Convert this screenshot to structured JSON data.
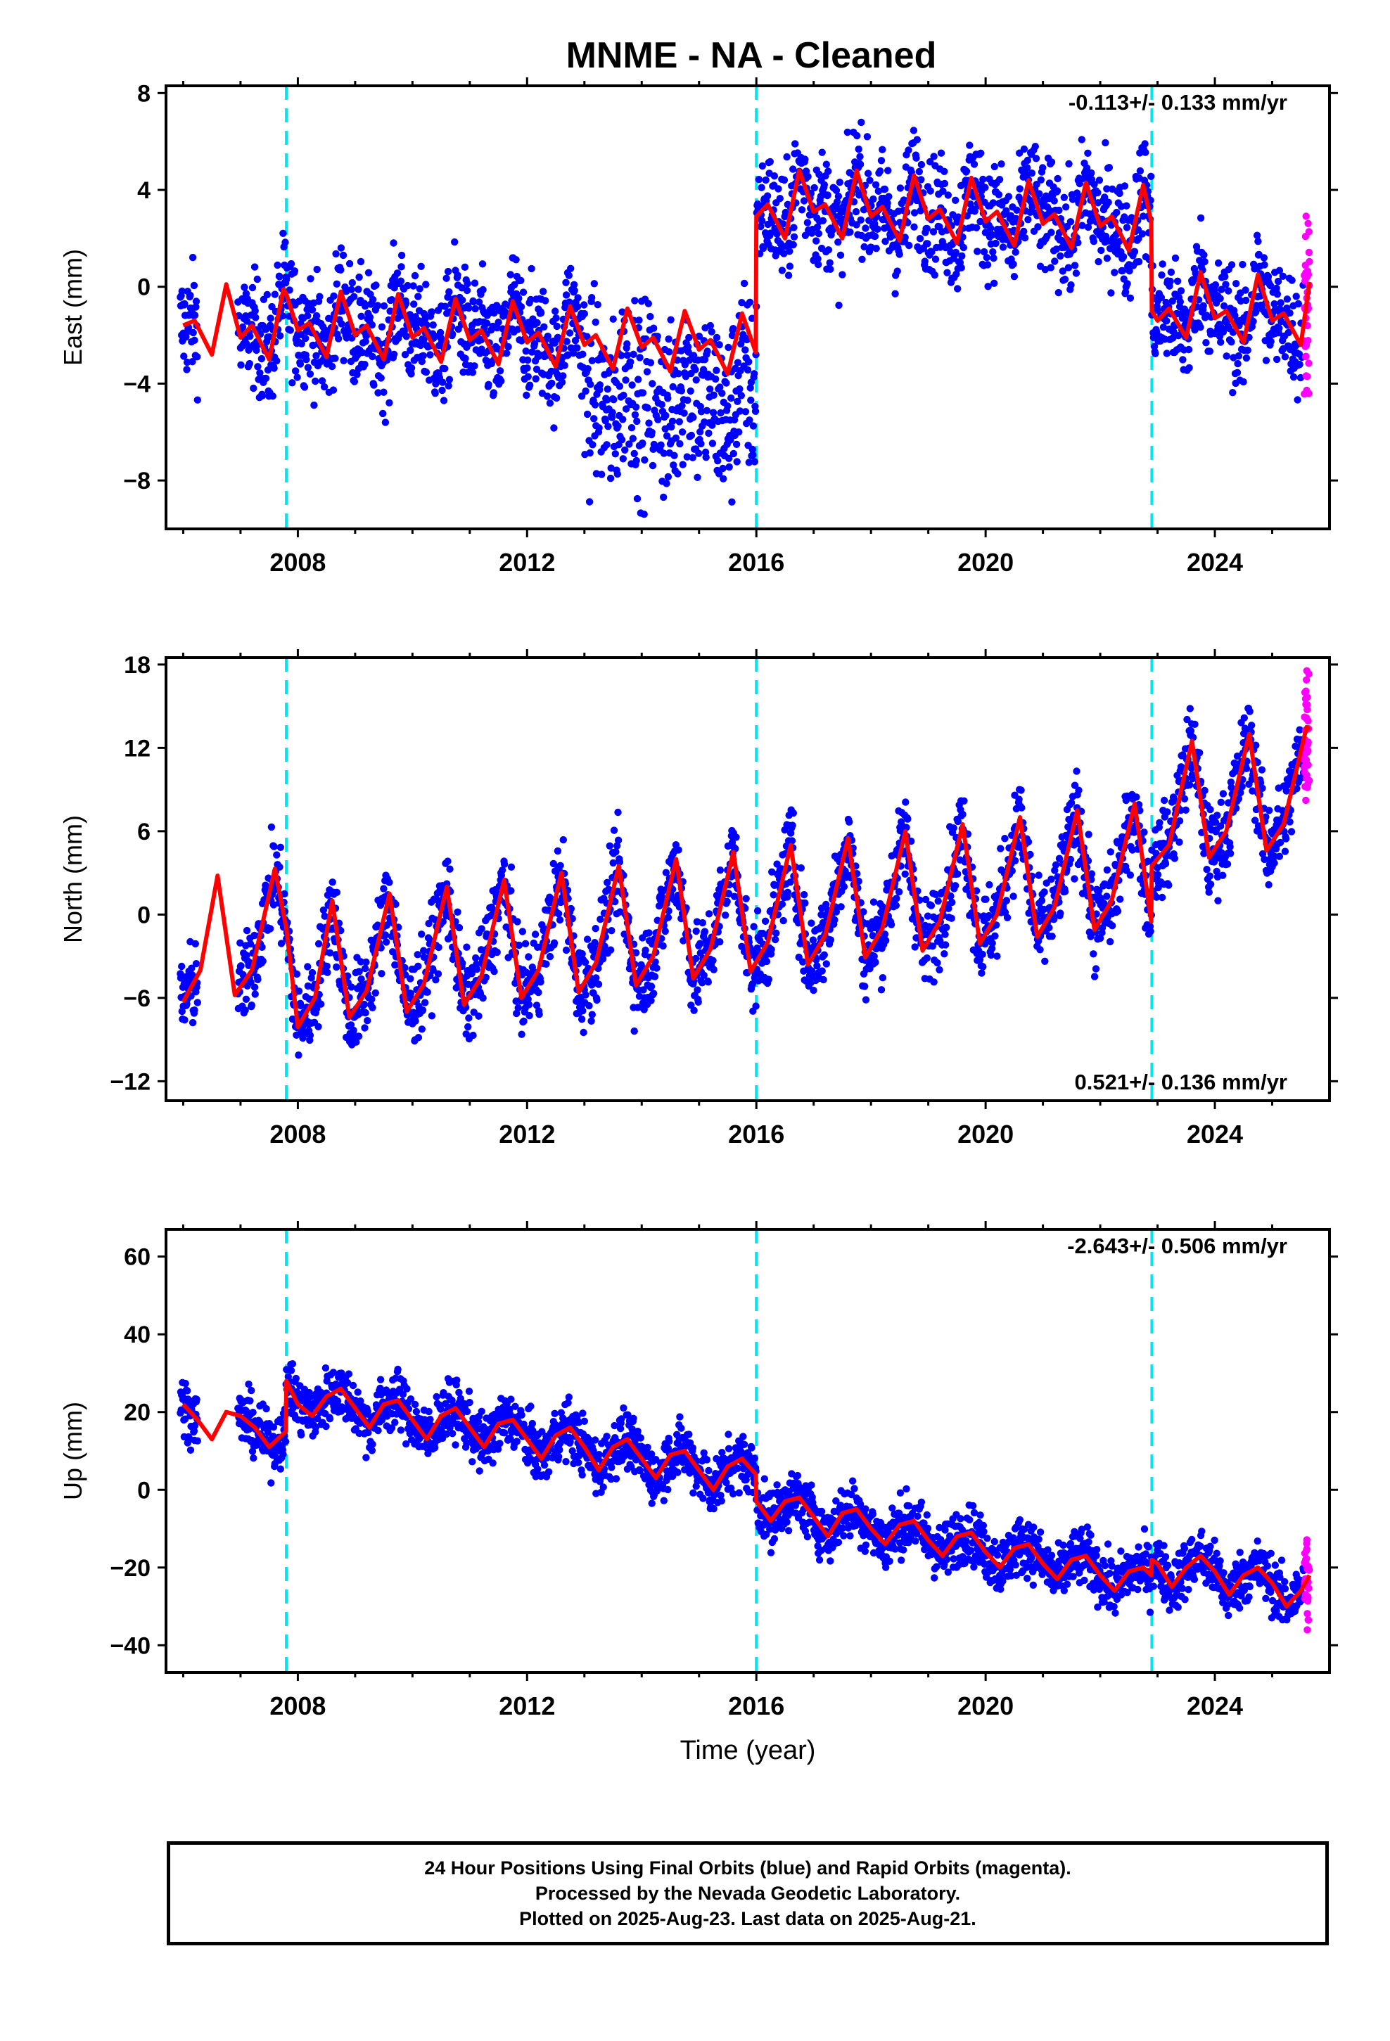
{
  "title": "MNME  - NA - Cleaned",
  "colors": {
    "final": "#0000ff",
    "rapid": "#ff00ff",
    "model": "#ff0000",
    "offset": "#00e5ee",
    "frame": "#000000"
  },
  "chart_data": [
    {
      "type": "scatter",
      "component": "East",
      "ylabel": "East (mm)",
      "xlabel": "",
      "xlim": [
        2005.7,
        2026.0
      ],
      "ylim": [
        -10.0,
        8.3
      ],
      "yticks": [
        -8,
        -4,
        0,
        4,
        8
      ],
      "yticklabels": [
        "−8",
        "−4",
        "0",
        "4",
        "8"
      ],
      "xticks": [
        2008,
        2012,
        2016,
        2020,
        2024
      ],
      "xticklabels": [
        "2008",
        "2012",
        "2016",
        "2020",
        "2024"
      ],
      "rate_label": "-0.113+/- 0.133 mm/yr",
      "rate_position": "top-right",
      "offset_epochs": [
        2007.8,
        2016.0,
        2022.9
      ],
      "grid": false,
      "series": [
        {
          "role": "final orbits",
          "color": "#0000ff",
          "marker": "dot"
        },
        {
          "role": "rapid orbits",
          "color": "#ff00ff",
          "marker": "dot"
        },
        {
          "role": "model fit",
          "color": "#ff0000",
          "marker": "line"
        }
      ],
      "model_points": [
        [
          2006.0,
          -1.6
        ],
        [
          2006.2,
          -1.4
        ],
        [
          2006.5,
          -2.8
        ],
        [
          2006.75,
          0.1
        ],
        [
          2007.0,
          -2.1
        ],
        [
          2007.2,
          -1.6
        ],
        [
          2007.5,
          -3.0
        ],
        [
          2007.75,
          -0.1
        ],
        [
          2007.8,
          -0.3
        ],
        [
          2008.0,
          -1.8
        ],
        [
          2008.2,
          -1.5
        ],
        [
          2008.5,
          -2.9
        ],
        [
          2008.75,
          -0.2
        ],
        [
          2009.0,
          -2.0
        ],
        [
          2009.2,
          -1.6
        ],
        [
          2009.5,
          -3.0
        ],
        [
          2009.75,
          -0.3
        ],
        [
          2010.0,
          -2.1
        ],
        [
          2010.2,
          -1.7
        ],
        [
          2010.5,
          -3.1
        ],
        [
          2010.75,
          -0.5
        ],
        [
          2011.0,
          -2.2
        ],
        [
          2011.2,
          -1.8
        ],
        [
          2011.5,
          -3.2
        ],
        [
          2011.75,
          -0.6
        ],
        [
          2012.0,
          -2.3
        ],
        [
          2012.2,
          -1.9
        ],
        [
          2012.5,
          -3.3
        ],
        [
          2012.75,
          -0.8
        ],
        [
          2013.0,
          -2.4
        ],
        [
          2013.2,
          -2.0
        ],
        [
          2013.5,
          -3.4
        ],
        [
          2013.75,
          -0.9
        ],
        [
          2014.0,
          -2.5
        ],
        [
          2014.2,
          -2.1
        ],
        [
          2014.5,
          -3.5
        ],
        [
          2014.75,
          -1.0
        ],
        [
          2015.0,
          -2.6
        ],
        [
          2015.2,
          -2.2
        ],
        [
          2015.5,
          -3.6
        ],
        [
          2015.75,
          -1.1
        ],
        [
          2015.99,
          -2.7
        ],
        [
          2016.0,
          2.9
        ],
        [
          2016.2,
          3.4
        ],
        [
          2016.5,
          2.0
        ],
        [
          2016.75,
          4.8
        ],
        [
          2017.0,
          3.1
        ],
        [
          2017.2,
          3.4
        ],
        [
          2017.5,
          2.0
        ],
        [
          2017.75,
          4.8
        ],
        [
          2018.0,
          2.9
        ],
        [
          2018.2,
          3.3
        ],
        [
          2018.5,
          1.9
        ],
        [
          2018.75,
          4.6
        ],
        [
          2019.0,
          2.8
        ],
        [
          2019.2,
          3.2
        ],
        [
          2019.5,
          1.8
        ],
        [
          2019.75,
          4.5
        ],
        [
          2020.0,
          2.7
        ],
        [
          2020.2,
          3.1
        ],
        [
          2020.5,
          1.7
        ],
        [
          2020.75,
          4.4
        ],
        [
          2021.0,
          2.6
        ],
        [
          2021.2,
          3.0
        ],
        [
          2021.5,
          1.6
        ],
        [
          2021.75,
          4.3
        ],
        [
          2022.0,
          2.5
        ],
        [
          2022.2,
          2.9
        ],
        [
          2022.5,
          1.5
        ],
        [
          2022.75,
          4.2
        ],
        [
          2022.89,
          2.7
        ],
        [
          2022.9,
          -1.0
        ],
        [
          2023.0,
          -1.4
        ],
        [
          2023.2,
          -0.9
        ],
        [
          2023.5,
          -2.1
        ],
        [
          2023.75,
          0.6
        ],
        [
          2024.0,
          -1.3
        ],
        [
          2024.2,
          -1.0
        ],
        [
          2024.5,
          -2.3
        ],
        [
          2024.75,
          0.5
        ],
        [
          2025.0,
          -1.4
        ],
        [
          2025.2,
          -1.1
        ],
        [
          2025.5,
          -2.4
        ],
        [
          2025.65,
          0.2
        ]
      ]
    },
    {
      "type": "scatter",
      "component": "North",
      "ylabel": "North (mm)",
      "xlabel": "",
      "xlim": [
        2005.7,
        2026.0
      ],
      "ylim": [
        -13.4,
        18.5
      ],
      "yticks": [
        -12,
        -6,
        0,
        6,
        12,
        18
      ],
      "yticklabels": [
        "−12",
        "−6",
        "0",
        "6",
        "12",
        "18"
      ],
      "xticks": [
        2008,
        2012,
        2016,
        2020,
        2024
      ],
      "xticklabels": [
        "2008",
        "2012",
        "2016",
        "2020",
        "2024"
      ],
      "rate_label": "0.521+/- 0.136 mm/yr",
      "rate_position": "bottom-right",
      "offset_epochs": [
        2007.8,
        2016.0,
        2022.9
      ],
      "grid": false,
      "series": [
        {
          "role": "final orbits",
          "color": "#0000ff",
          "marker": "dot"
        },
        {
          "role": "rapid orbits",
          "color": "#ff00ff",
          "marker": "dot"
        },
        {
          "role": "model fit",
          "color": "#ff0000",
          "marker": "line"
        }
      ],
      "model_points": [
        [
          2006.0,
          -6.3
        ],
        [
          2006.3,
          -4.0
        ],
        [
          2006.6,
          2.8
        ],
        [
          2006.9,
          -5.8
        ],
        [
          2007.2,
          -4.0
        ],
        [
          2007.6,
          3.3
        ],
        [
          2007.8,
          -1.0
        ],
        [
          2008.0,
          -8.1
        ],
        [
          2008.3,
          -6.0
        ],
        [
          2008.6,
          1.0
        ],
        [
          2008.9,
          -7.4
        ],
        [
          2009.2,
          -5.5
        ],
        [
          2009.6,
          1.5
        ],
        [
          2009.9,
          -7.0
        ],
        [
          2010.2,
          -5.0
        ],
        [
          2010.6,
          2.0
        ],
        [
          2010.9,
          -6.5
        ],
        [
          2011.2,
          -4.5
        ],
        [
          2011.6,
          2.5
        ],
        [
          2011.9,
          -6.0
        ],
        [
          2012.2,
          -4.0
        ],
        [
          2012.6,
          3.0
        ],
        [
          2012.9,
          -5.6
        ],
        [
          2013.2,
          -3.5
        ],
        [
          2013.6,
          3.5
        ],
        [
          2013.9,
          -5.1
        ],
        [
          2014.2,
          -3.0
        ],
        [
          2014.6,
          4.0
        ],
        [
          2014.9,
          -4.6
        ],
        [
          2015.2,
          -2.5
        ],
        [
          2015.6,
          4.5
        ],
        [
          2015.9,
          -4.1
        ],
        [
          2016.2,
          -2.0
        ],
        [
          2016.6,
          5.0
        ],
        [
          2016.9,
          -3.6
        ],
        [
          2017.2,
          -1.5
        ],
        [
          2017.6,
          5.5
        ],
        [
          2017.9,
          -3.1
        ],
        [
          2018.2,
          -1.0
        ],
        [
          2018.6,
          6.0
        ],
        [
          2018.9,
          -2.6
        ],
        [
          2019.2,
          -0.5
        ],
        [
          2019.6,
          6.5
        ],
        [
          2019.9,
          -2.1
        ],
        [
          2020.2,
          0.0
        ],
        [
          2020.6,
          7.0
        ],
        [
          2020.9,
          -1.6
        ],
        [
          2021.2,
          0.5
        ],
        [
          2021.6,
          7.5
        ],
        [
          2021.9,
          -1.1
        ],
        [
          2022.2,
          1.0
        ],
        [
          2022.6,
          8.0
        ],
        [
          2022.89,
          -0.5
        ],
        [
          2022.9,
          3.5
        ],
        [
          2023.2,
          5.0
        ],
        [
          2023.6,
          12.5
        ],
        [
          2023.9,
          4.1
        ],
        [
          2024.2,
          6.0
        ],
        [
          2024.6,
          13.0
        ],
        [
          2024.9,
          4.6
        ],
        [
          2025.2,
          6.5
        ],
        [
          2025.6,
          13.5
        ],
        [
          2025.65,
          13.3
        ]
      ]
    },
    {
      "type": "scatter",
      "component": "Up",
      "ylabel": "Up (mm)",
      "xlabel": "Time (year)",
      "xlim": [
        2005.7,
        2026.0
      ],
      "ylim": [
        -47.0,
        67.0
      ],
      "yticks": [
        -40,
        -20,
        0,
        20,
        40,
        60
      ],
      "yticklabels": [
        "−40",
        "−20",
        "0",
        "20",
        "40",
        "60"
      ],
      "xticks": [
        2008,
        2012,
        2016,
        2020,
        2024
      ],
      "xticklabels": [
        "2008",
        "2012",
        "2016",
        "2020",
        "2024"
      ],
      "rate_label": "-2.643+/- 0.506 mm/yr",
      "rate_position": "top-right",
      "offset_epochs": [
        2007.8,
        2016.0,
        2022.9
      ],
      "grid": false,
      "series": [
        {
          "role": "final orbits",
          "color": "#0000ff",
          "marker": "dot"
        },
        {
          "role": "rapid orbits",
          "color": "#ff00ff",
          "marker": "dot"
        },
        {
          "role": "model fit",
          "color": "#ff0000",
          "marker": "line"
        }
      ],
      "model_points": [
        [
          2006.0,
          22
        ],
        [
          2006.25,
          18
        ],
        [
          2006.5,
          13
        ],
        [
          2006.75,
          20
        ],
        [
          2007.0,
          19
        ],
        [
          2007.25,
          16
        ],
        [
          2007.5,
          11
        ],
        [
          2007.79,
          15
        ],
        [
          2007.8,
          28
        ],
        [
          2008.0,
          22
        ],
        [
          2008.25,
          19
        ],
        [
          2008.5,
          24
        ],
        [
          2008.75,
          26
        ],
        [
          2009.0,
          21
        ],
        [
          2009.25,
          16
        ],
        [
          2009.5,
          22
        ],
        [
          2009.75,
          23
        ],
        [
          2010.0,
          18
        ],
        [
          2010.25,
          13
        ],
        [
          2010.5,
          19
        ],
        [
          2010.75,
          21
        ],
        [
          2011.0,
          16
        ],
        [
          2011.25,
          11
        ],
        [
          2011.5,
          17
        ],
        [
          2011.75,
          18
        ],
        [
          2012.0,
          13
        ],
        [
          2012.25,
          8
        ],
        [
          2012.5,
          14
        ],
        [
          2012.75,
          16
        ],
        [
          2013.0,
          11
        ],
        [
          2013.25,
          5
        ],
        [
          2013.5,
          11
        ],
        [
          2013.75,
          13
        ],
        [
          2014.0,
          8
        ],
        [
          2014.25,
          3
        ],
        [
          2014.5,
          9
        ],
        [
          2014.75,
          10
        ],
        [
          2015.0,
          5
        ],
        [
          2015.25,
          0
        ],
        [
          2015.5,
          6
        ],
        [
          2015.75,
          8
        ],
        [
          2015.99,
          4
        ],
        [
          2016.0,
          -3
        ],
        [
          2016.25,
          -8
        ],
        [
          2016.5,
          -3
        ],
        [
          2016.75,
          -2
        ],
        [
          2017.0,
          -7
        ],
        [
          2017.25,
          -12
        ],
        [
          2017.5,
          -6
        ],
        [
          2017.75,
          -5
        ],
        [
          2018.0,
          -10
        ],
        [
          2018.25,
          -14
        ],
        [
          2018.5,
          -9
        ],
        [
          2018.75,
          -8
        ],
        [
          2019.0,
          -13
        ],
        [
          2019.25,
          -17
        ],
        [
          2019.5,
          -12
        ],
        [
          2019.75,
          -11
        ],
        [
          2020.0,
          -16
        ],
        [
          2020.25,
          -20
        ],
        [
          2020.5,
          -15
        ],
        [
          2020.75,
          -14
        ],
        [
          2021.0,
          -19
        ],
        [
          2021.25,
          -23
        ],
        [
          2021.5,
          -18
        ],
        [
          2021.75,
          -17
        ],
        [
          2022.0,
          -22
        ],
        [
          2022.25,
          -26
        ],
        [
          2022.5,
          -21
        ],
        [
          2022.75,
          -20
        ],
        [
          2022.89,
          -22
        ],
        [
          2022.9,
          -18
        ],
        [
          2023.0,
          -19
        ],
        [
          2023.25,
          -25
        ],
        [
          2023.5,
          -20
        ],
        [
          2023.75,
          -17
        ],
        [
          2024.0,
          -21
        ],
        [
          2024.25,
          -27
        ],
        [
          2024.5,
          -22
        ],
        [
          2024.75,
          -20
        ],
        [
          2025.0,
          -24
        ],
        [
          2025.25,
          -30
        ],
        [
          2025.5,
          -26
        ],
        [
          2025.65,
          -22
        ]
      ]
    }
  ],
  "footer": {
    "line1": "24 Hour Positions Using Final Orbits (blue) and Rapid Orbits (magenta).",
    "line2": "Processed by the Nevada Geodetic Laboratory.",
    "line3": "Plotted on 2025-Aug-23. Last data on 2025-Aug-21."
  }
}
